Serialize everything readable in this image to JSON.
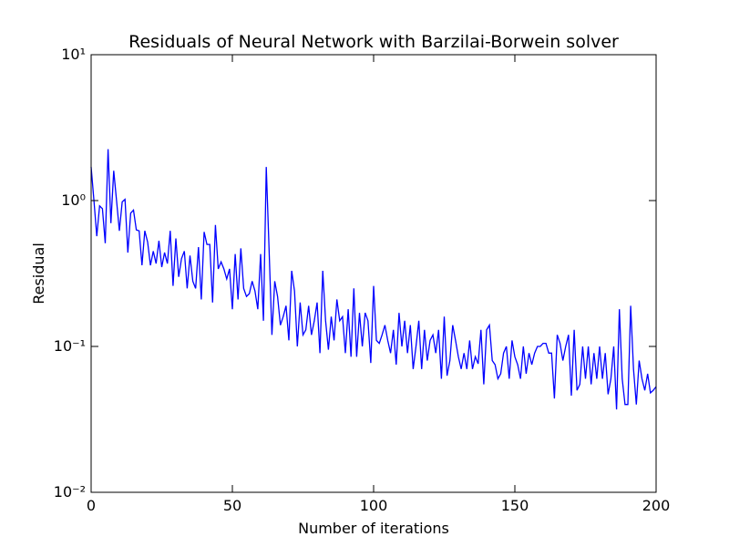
{
  "chart_data": {
    "type": "line",
    "title": "Residuals of Neural Network with Barzilai-Borwein solver",
    "xlabel": "Number of iterations",
    "ylabel": "Residual",
    "log_y": true,
    "xlim": [
      0,
      200
    ],
    "ylim": [
      0.01,
      10
    ],
    "xticks": [
      0,
      50,
      100,
      150,
      200
    ],
    "yticks": [
      {
        "value": 0.01,
        "label": "10⁻²"
      },
      {
        "value": 0.1,
        "label": "10⁻¹"
      },
      {
        "value": 1,
        "label": "10⁰"
      },
      {
        "value": 10,
        "label": "10¹"
      }
    ],
    "x": [
      0,
      1,
      2,
      3,
      4,
      5,
      6,
      7,
      8,
      9,
      10,
      11,
      12,
      13,
      14,
      15,
      16,
      17,
      18,
      19,
      20,
      21,
      22,
      23,
      24,
      25,
      26,
      27,
      28,
      29,
      30,
      31,
      32,
      33,
      34,
      35,
      36,
      37,
      38,
      39,
      40,
      41,
      42,
      43,
      44,
      45,
      46,
      47,
      48,
      49,
      50,
      51,
      52,
      53,
      54,
      55,
      56,
      57,
      58,
      59,
      60,
      61,
      62,
      63,
      64,
      65,
      66,
      67,
      68,
      69,
      70,
      71,
      72,
      73,
      74,
      75,
      76,
      77,
      78,
      79,
      80,
      81,
      82,
      83,
      84,
      85,
      86,
      87,
      88,
      89,
      90,
      91,
      92,
      93,
      94,
      95,
      96,
      97,
      98,
      99,
      100,
      101,
      102,
      103,
      104,
      105,
      106,
      107,
      108,
      109,
      110,
      111,
      112,
      113,
      114,
      115,
      116,
      117,
      118,
      119,
      120,
      121,
      122,
      123,
      124,
      125,
      126,
      127,
      128,
      129,
      130,
      131,
      132,
      133,
      134,
      135,
      136,
      137,
      138,
      139,
      140,
      141,
      142,
      143,
      144,
      145,
      146,
      147,
      148,
      149,
      150,
      151,
      152,
      153,
      154,
      155,
      156,
      157,
      158,
      159,
      160,
      161,
      162,
      163,
      164,
      165,
      166,
      167,
      168,
      169,
      170,
      171,
      172,
      173,
      174,
      175,
      176,
      177,
      178,
      179,
      180,
      181,
      182,
      183,
      184,
      185,
      186,
      187,
      188,
      189,
      190,
      191,
      192,
      193,
      194,
      195,
      196,
      197,
      198,
      199,
      200
    ],
    "series": [
      {
        "color": "#0000ff",
        "values": [
          1.7,
          1.0,
          0.57,
          0.92,
          0.88,
          0.51,
          2.25,
          0.7,
          1.6,
          1.0,
          0.62,
          0.98,
          1.02,
          0.44,
          0.82,
          0.86,
          0.63,
          0.62,
          0.36,
          0.62,
          0.52,
          0.36,
          0.45,
          0.37,
          0.53,
          0.35,
          0.44,
          0.37,
          0.62,
          0.26,
          0.55,
          0.3,
          0.4,
          0.45,
          0.25,
          0.42,
          0.28,
          0.25,
          0.48,
          0.21,
          0.61,
          0.5,
          0.5,
          0.2,
          0.68,
          0.34,
          0.38,
          0.34,
          0.29,
          0.34,
          0.18,
          0.43,
          0.21,
          0.47,
          0.25,
          0.22,
          0.23,
          0.28,
          0.24,
          0.18,
          0.43,
          0.15,
          1.7,
          0.46,
          0.12,
          0.28,
          0.22,
          0.14,
          0.16,
          0.19,
          0.11,
          0.33,
          0.24,
          0.1,
          0.2,
          0.12,
          0.13,
          0.19,
          0.12,
          0.15,
          0.2,
          0.09,
          0.33,
          0.15,
          0.095,
          0.16,
          0.11,
          0.21,
          0.15,
          0.16,
          0.09,
          0.18,
          0.085,
          0.25,
          0.085,
          0.17,
          0.1,
          0.17,
          0.15,
          0.077,
          0.26,
          0.11,
          0.105,
          0.12,
          0.14,
          0.11,
          0.09,
          0.13,
          0.075,
          0.17,
          0.1,
          0.15,
          0.09,
          0.14,
          0.07,
          0.1,
          0.15,
          0.07,
          0.13,
          0.08,
          0.11,
          0.12,
          0.09,
          0.13,
          0.06,
          0.16,
          0.063,
          0.08,
          0.14,
          0.11,
          0.085,
          0.07,
          0.09,
          0.07,
          0.11,
          0.07,
          0.085,
          0.076,
          0.13,
          0.055,
          0.13,
          0.14,
          0.08,
          0.075,
          0.06,
          0.065,
          0.09,
          0.1,
          0.06,
          0.11,
          0.085,
          0.075,
          0.06,
          0.1,
          0.065,
          0.09,
          0.075,
          0.09,
          0.1,
          0.1,
          0.105,
          0.105,
          0.09,
          0.09,
          0.044,
          0.12,
          0.105,
          0.08,
          0.1,
          0.12,
          0.046,
          0.13,
          0.05,
          0.055,
          0.1,
          0.06,
          0.1,
          0.055,
          0.09,
          0.06,
          0.1,
          0.06,
          0.09,
          0.047,
          0.06,
          0.1,
          0.037,
          0.18,
          0.06,
          0.04,
          0.04,
          0.19,
          0.07,
          0.04,
          0.08,
          0.06,
          0.05,
          0.065,
          0.048,
          0.05,
          0.053
        ]
      }
    ]
  }
}
